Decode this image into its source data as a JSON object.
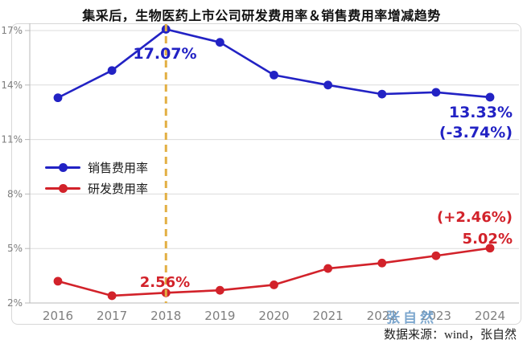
{
  "title": "集采后，生物医药上市公司研发费用率＆销售费用率增减趋势",
  "source": {
    "text": "数据来源：wind，张自然"
  },
  "watermark": {
    "text": "张自然"
  },
  "colors": {
    "sales_blue": "#2222c4",
    "rd_red": "#d2222a",
    "highlight_gold": "#e2af43",
    "gridline": "#dcdcdc",
    "axis_line": "#b9b9b9",
    "tick_text": "#7f7f7f"
  },
  "annotations": {
    "peak_sales": "17.07%",
    "sales_end_value": "13.33%",
    "sales_end_change": "(-3.74%)",
    "rd_2018_value": "2.56%",
    "rd_end_change": "(+2.46%)",
    "rd_end_value": "5.02%"
  },
  "chart_data": {
    "type": "line",
    "categories": [
      "2016",
      "2017",
      "2018",
      "2019",
      "2020",
      "2021",
      "2022",
      "2023",
      "2024"
    ],
    "series": [
      {
        "name": "销售费用率",
        "color": "#2222c4",
        "values": [
          13.3,
          14.8,
          17.07,
          16.35,
          14.55,
          14.0,
          13.5,
          13.6,
          13.33
        ],
        "peak_label": {
          "x": "2018",
          "value": 17.07
        },
        "end_label": {
          "x": "2024",
          "value": 13.33,
          "change_since_2018": -3.74
        }
      },
      {
        "name": "研发费用率",
        "color": "#d2222a",
        "values": [
          3.2,
          2.4,
          2.56,
          2.7,
          3.0,
          3.9,
          4.2,
          4.6,
          5.02
        ],
        "low_label": {
          "x": "2018",
          "value": 2.56
        },
        "end_label": {
          "x": "2024",
          "value": 5.02,
          "change_since_2018": 2.46
        }
      }
    ],
    "title": "集采后，生物医药上市公司研发费用率＆销售费用率增减趋势",
    "xlabel": "",
    "ylabel": "",
    "ylim": [
      2,
      17
    ],
    "yticks": [
      2,
      5,
      8,
      11,
      14,
      17
    ],
    "ytick_suffix": "%",
    "grid": true,
    "legend_position": "middle-left",
    "highlight_x": "2018",
    "highlight_line_style": "dashed-gold-vertical"
  }
}
